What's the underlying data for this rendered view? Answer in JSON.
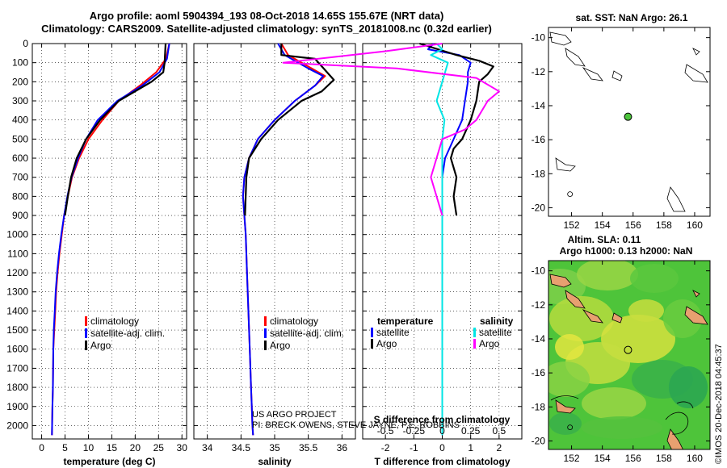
{
  "header": {
    "title_line1": "Argo profile: aoml 5904394_193 08-Oct-2018 14.65S 155.67E (NRT data)",
    "title_line2": "Climatology: CARS2009. Satellite-adjusted climatology: synTS_20181008.nc (0.32d earlier)"
  },
  "colors": {
    "climatology": "#ff0000",
    "satellite": "#0000ff",
    "argo": "#000000",
    "salinity_satellite": "#00e5e5",
    "salinity_argo": "#ff00ff",
    "ocean_green": "#4cc43c",
    "land": "#e8a070"
  },
  "footer": {
    "credit_line1": "US ARGO PROJECT",
    "credit_line2": "PI: BRECK OWENS, STEVE JAYNE, P.E. ROBBINS",
    "imos_stamp": "©IMOS 20-Dec-2018 04:45:37"
  },
  "chart_data": [
    {
      "type": "line",
      "title": "",
      "xlabel": "temperature (deg C)",
      "ylabel": "",
      "xlim": [
        -2,
        31
      ],
      "ylim": [
        0,
        2070
      ],
      "y_inverted": true,
      "xticks": [
        0,
        5,
        10,
        15,
        20,
        25,
        30
      ],
      "xtick_labels": [
        "0",
        "5",
        "10",
        "15",
        "20",
        "25",
        "30"
      ],
      "yticks": [
        0,
        100,
        200,
        300,
        400,
        500,
        600,
        700,
        800,
        900,
        1000,
        1100,
        1200,
        1300,
        1400,
        1500,
        1600,
        1700,
        1800,
        1900,
        2000
      ],
      "ytick_labels": [
        "0",
        "100",
        "200",
        "300",
        "400",
        "500",
        "600",
        "700",
        "800",
        "900",
        "1000",
        "1100",
        "1200",
        "1300",
        "1400",
        "1500",
        "1600",
        "1700",
        "1800",
        "1900",
        "2000"
      ],
      "grid": true,
      "legend_position": "lower-middle",
      "series": [
        {
          "name": "climatology",
          "color": "#ff0000",
          "x": [
            27.3,
            26.6,
            24.5,
            21.0,
            16.5,
            13.0,
            10.0,
            8.0,
            6.5,
            5.6,
            4.8,
            4.3,
            3.8,
            3.4,
            3.1,
            2.9,
            2.7,
            2.5,
            2.4,
            2.3,
            2.2
          ],
          "y": [
            0,
            80,
            150,
            220,
            300,
            400,
            500,
            600,
            700,
            800,
            900,
            1000,
            1100,
            1200,
            1300,
            1400,
            1500,
            1600,
            1800,
            1900,
            2050
          ]
        },
        {
          "name": "satellite-adj. clim.",
          "color": "#0000ff",
          "x": [
            27.3,
            26.8,
            25.2,
            21.5,
            16.2,
            12.0,
            9.5,
            7.8,
            6.4,
            5.5,
            4.8,
            4.2,
            3.7,
            3.3,
            3.0,
            2.8,
            2.6,
            2.5,
            2.4,
            2.3,
            2.2
          ],
          "y": [
            0,
            80,
            150,
            220,
            300,
            400,
            500,
            600,
            700,
            800,
            900,
            1000,
            1100,
            1200,
            1300,
            1400,
            1500,
            1600,
            1800,
            1900,
            2050
          ]
        },
        {
          "name": "Argo",
          "color": "#000000",
          "x": [
            26.5,
            26.3,
            26.0,
            23.5,
            20.0,
            16.5,
            12.5,
            9.5,
            7.5,
            6.3,
            5.6,
            5.0
          ],
          "y": [
            0,
            100,
            150,
            200,
            250,
            300,
            400,
            500,
            600,
            700,
            800,
            900
          ]
        }
      ]
    },
    {
      "type": "line",
      "title": "",
      "xlabel": "salinity",
      "ylabel": "",
      "xlim": [
        33.8,
        36.2
      ],
      "ylim": [
        0,
        2070
      ],
      "y_inverted": true,
      "xticks": [
        34,
        34.5,
        35,
        35.5,
        36
      ],
      "xtick_labels": [
        "34",
        "34.5",
        "35",
        "35.5",
        "36"
      ],
      "grid": true,
      "legend_position": "lower-middle",
      "series": [
        {
          "name": "climatology",
          "color": "#ff0000",
          "x": [
            35.1,
            35.2,
            35.55,
            35.75,
            35.6,
            35.3,
            35.0,
            34.75,
            34.62,
            34.55,
            34.53,
            34.55,
            34.57,
            34.59,
            34.61,
            34.63,
            34.65,
            34.66,
            34.67,
            34.68
          ],
          "y": [
            0,
            60,
            130,
            170,
            220,
            300,
            400,
            500,
            600,
            700,
            800,
            900,
            1000,
            1200,
            1400,
            1600,
            1800,
            1900,
            2000,
            2050
          ]
        },
        {
          "name": "satellite-adj. clim.",
          "color": "#0000ff",
          "x": [
            35.05,
            35.15,
            35.5,
            35.72,
            35.6,
            35.3,
            35.0,
            34.75,
            34.62,
            34.55,
            34.53,
            34.55,
            34.57,
            34.59,
            34.61,
            34.63,
            34.65,
            34.66,
            34.67,
            34.68
          ],
          "y": [
            0,
            60,
            130,
            170,
            220,
            300,
            400,
            500,
            600,
            700,
            800,
            900,
            1000,
            1200,
            1400,
            1600,
            1800,
            1900,
            2000,
            2050
          ]
        },
        {
          "name": "Argo",
          "color": "#000000",
          "x": [
            35.1,
            35.1,
            35.6,
            35.88,
            35.7,
            35.4,
            35.05,
            34.8,
            34.62,
            34.58,
            34.56
          ],
          "y": [
            0,
            60,
            80,
            190,
            250,
            300,
            400,
            500,
            600,
            700,
            900
          ]
        }
      ]
    },
    {
      "type": "line",
      "title": "",
      "xlabel": "T difference from climatology",
      "xlabel_top": "S difference from climatology",
      "ylabel": "",
      "xlim": [
        -2.8,
        2.8
      ],
      "ylim": [
        0,
        2070
      ],
      "y_inverted": true,
      "xticks": [
        -2,
        -1,
        0,
        1,
        2
      ],
      "xtick_labels": [
        "-2",
        "-1",
        "0",
        "1",
        "2"
      ],
      "s_ticks": [
        -0.5,
        -0.25,
        0,
        0.25,
        0.5
      ],
      "s_tick_labels": [
        "-0.5",
        "-0.25",
        "0",
        "0.25",
        "0.5"
      ],
      "grid": true,
      "legend_left_title": "temperature",
      "legend_right_title": "salinity",
      "series": [
        {
          "name": "satellite",
          "group": "temperature",
          "color": "#0000ff",
          "x": [
            -0.3,
            -0.5,
            0.6,
            1.0,
            0.9,
            0.9,
            0.8,
            0.7,
            0.4,
            0.1,
            0.0,
            0.0,
            0.0,
            0.0,
            0.0,
            0.0,
            0.0
          ],
          "y": [
            0,
            30,
            60,
            100,
            150,
            200,
            300,
            400,
            500,
            600,
            700,
            800,
            900,
            1000,
            1500,
            1800,
            2050
          ]
        },
        {
          "name": "Argo",
          "group": "temperature",
          "color": "#000000",
          "x": [
            -0.8,
            0.5,
            1.3,
            1.8,
            1.6,
            1.3,
            1.2,
            1.0,
            0.7,
            0.4,
            0.3,
            0.5,
            0.4,
            0.5
          ],
          "y": [
            0,
            60,
            90,
            120,
            160,
            200,
            300,
            400,
            500,
            550,
            600,
            700,
            800,
            900
          ]
        },
        {
          "name": "satellite",
          "group": "salinity",
          "color": "#00e5e5",
          "x": [
            -0.05,
            0.0,
            -0.1,
            0.05,
            0.0,
            -0.05,
            0.02,
            0.0,
            0.0,
            0.0,
            0.0,
            0.0
          ],
          "y": [
            0,
            30,
            60,
            100,
            200,
            300,
            400,
            500,
            600,
            800,
            1200,
            2050
          ]
        },
        {
          "name": "Argo",
          "group": "salinity",
          "color": "#ff00ff",
          "x": [
            0.0,
            -0.5,
            -1.4,
            -0.4,
            0.3,
            0.5,
            0.4,
            0.3,
            0.2,
            0.0,
            -0.1,
            0.0
          ],
          "y": [
            0,
            40,
            100,
            130,
            180,
            250,
            300,
            400,
            450,
            500,
            700,
            900
          ]
        }
      ]
    },
    {
      "type": "scatter",
      "title": "sat. SST: NaN Argo: 26.1",
      "xlim": [
        150.5,
        161
      ],
      "ylim": [
        -20.5,
        -9.4
      ],
      "xticks": [
        152,
        154,
        156,
        158,
        160
      ],
      "xtick_labels": [
        "152",
        "154",
        "156",
        "158",
        "160"
      ],
      "yticks": [
        -10,
        -12,
        -14,
        -16,
        -18,
        -20
      ],
      "ytick_labels": [
        "-10",
        "-12",
        "-14",
        "-16",
        "-18",
        "-20"
      ],
      "marker": {
        "lon": 155.67,
        "lat": -14.65
      }
    },
    {
      "type": "heatmap",
      "title": "Altim. SLA: 0.11",
      "subtitle": "Argo h1000: 0.13 h2000: NaN",
      "xlim": [
        150.5,
        161
      ],
      "ylim": [
        -20.5,
        -9.4
      ],
      "xticks": [
        152,
        154,
        156,
        158,
        160
      ],
      "xtick_labels": [
        "152",
        "154",
        "156",
        "158",
        "160"
      ],
      "yticks": [
        -10,
        -12,
        -14,
        -16,
        -18,
        -20
      ],
      "ytick_labels": [
        "-10",
        "-12",
        "-14",
        "-16",
        "-18",
        "-20"
      ],
      "marker": {
        "lon": 155.67,
        "lat": -14.65
      }
    }
  ]
}
